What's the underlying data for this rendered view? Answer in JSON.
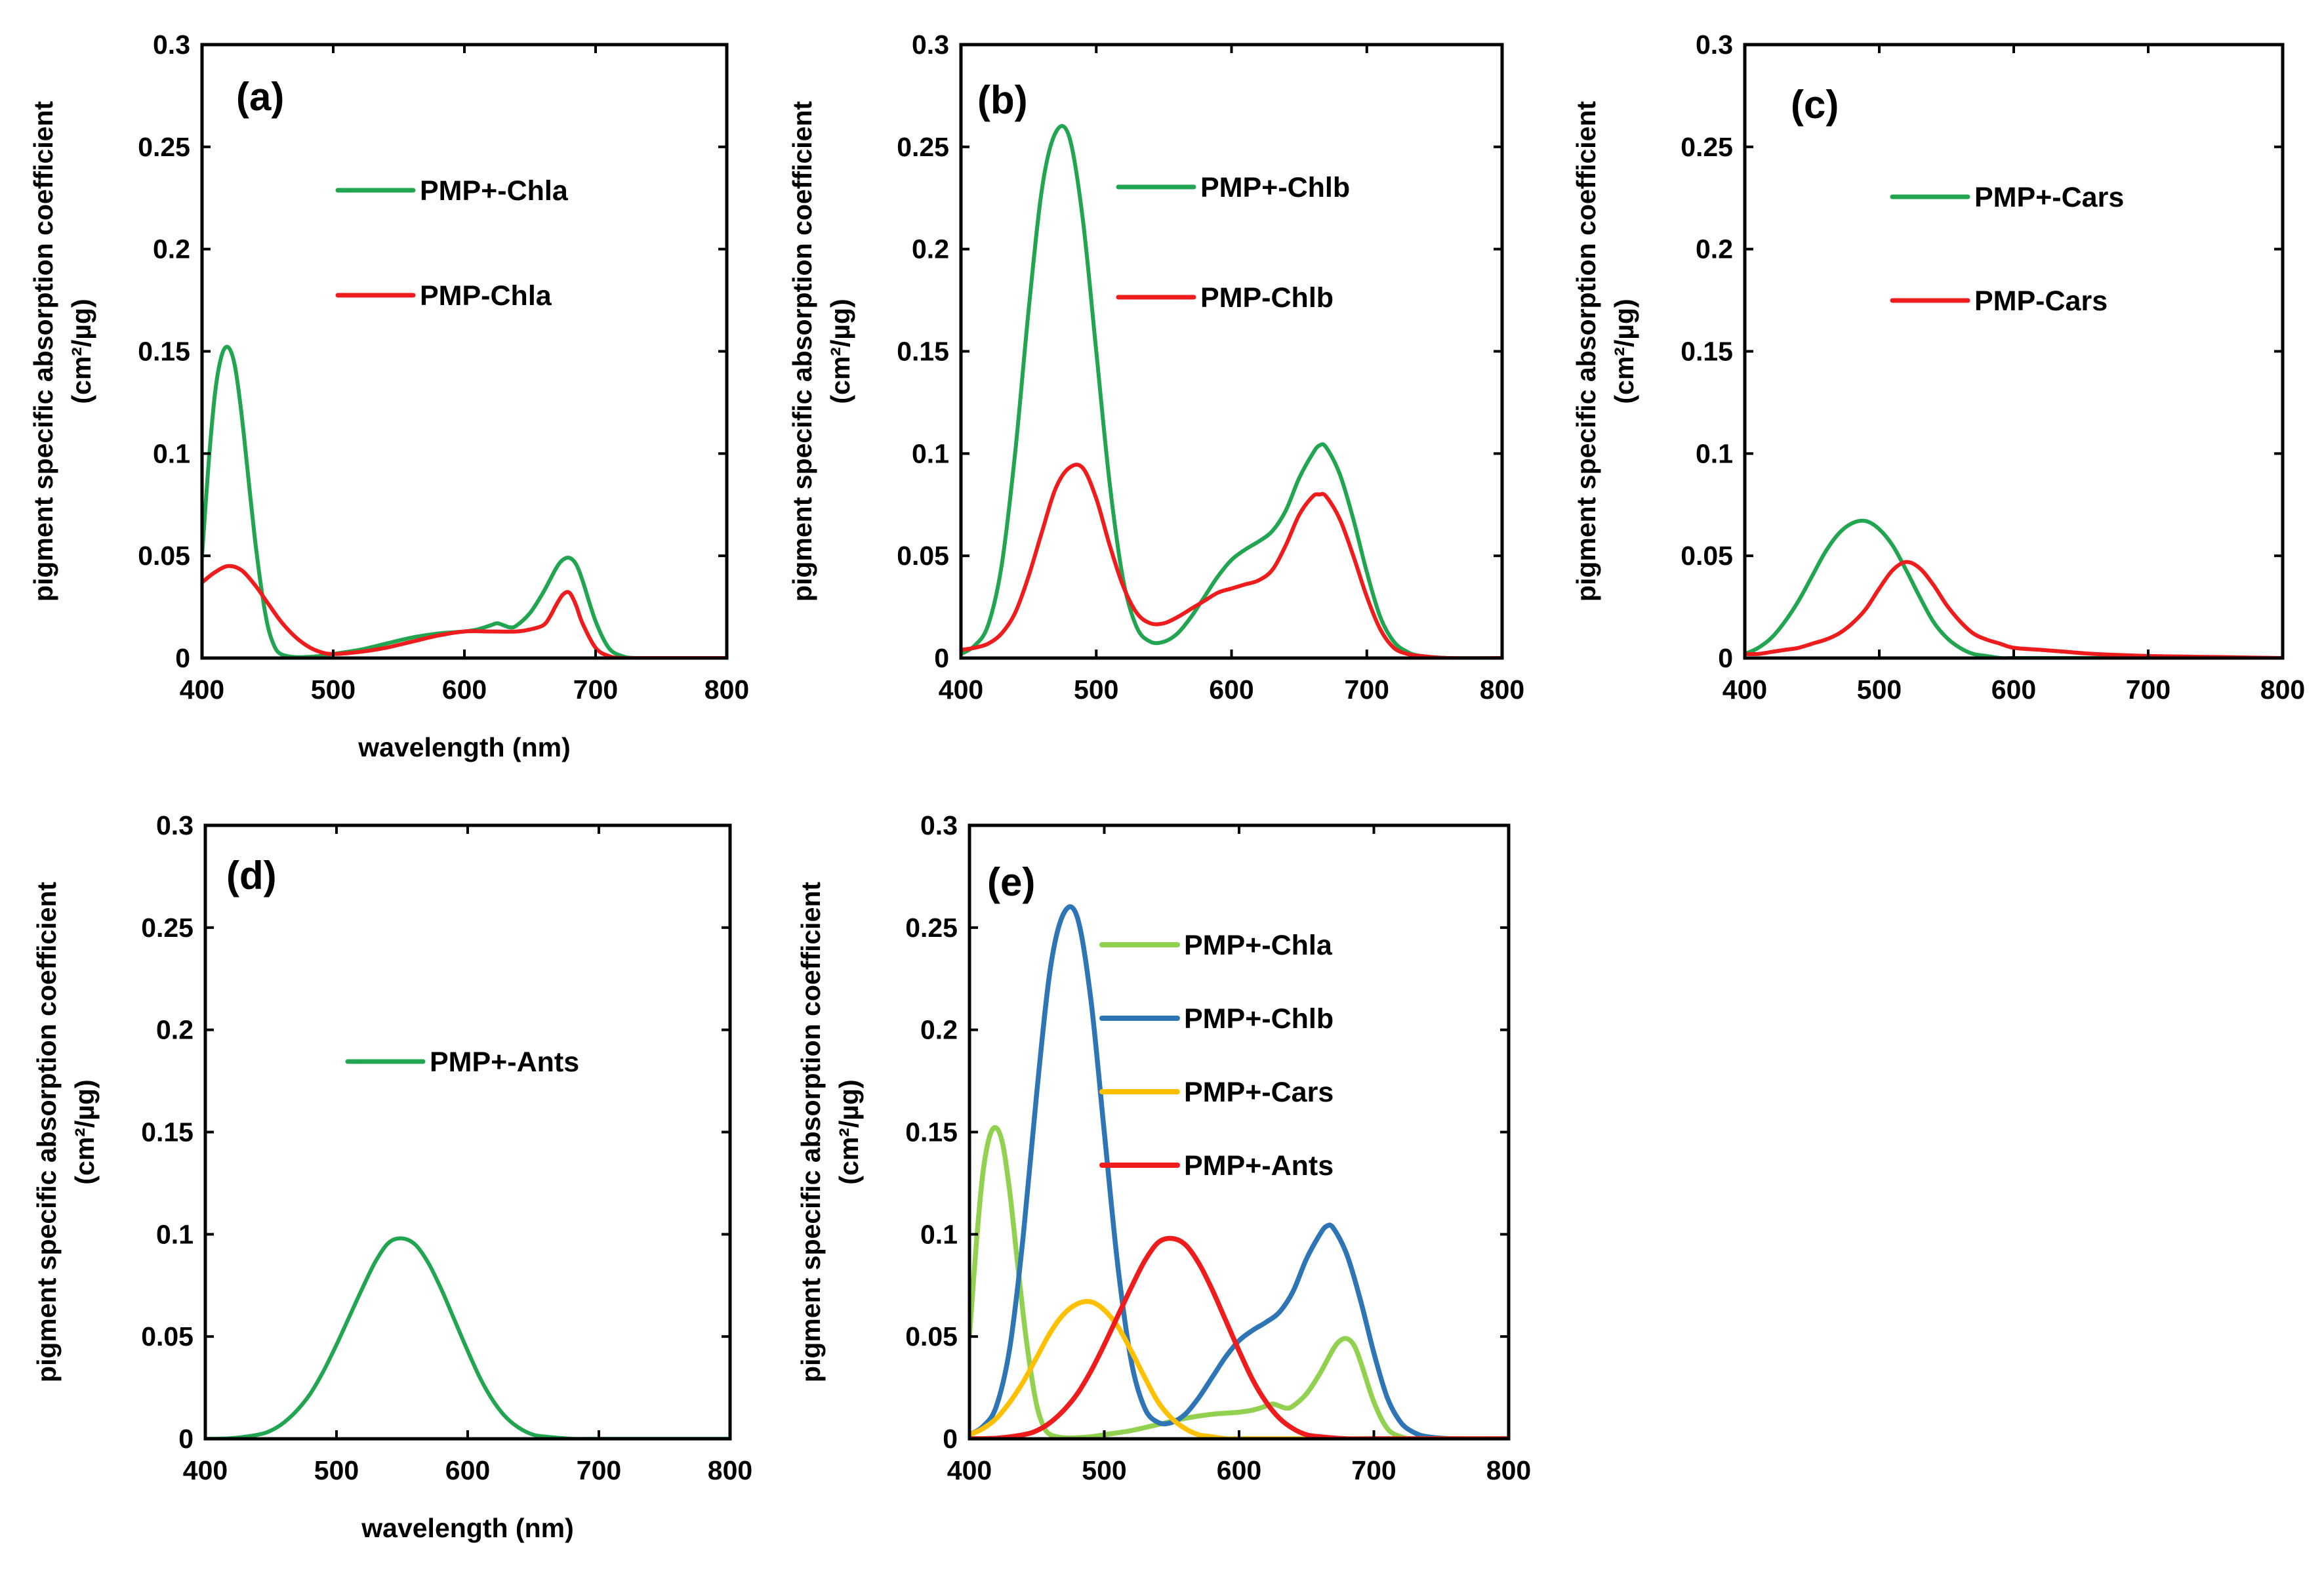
{
  "chart_data": [
    {
      "type": "line",
      "panel": "(a)",
      "xlabel": "wavelength (nm)",
      "ylabel": "pigment specific absorption coefficient",
      "ylabel_unit": "(cm²/µg)",
      "xlim": [
        400,
        800
      ],
      "ylim": [
        0,
        0.3
      ],
      "xticks": [
        "400",
        "500",
        "600",
        "700",
        "800"
      ],
      "yticks": [
        "0",
        "0.05",
        "0.1",
        "0.15",
        "0.2",
        "0.25",
        "0.3"
      ],
      "legend_position": "upper-middle",
      "series": [
        {
          "name": "PMP+-Chla",
          "color": "#21a550",
          "x": [
            400,
            405,
            410,
            415,
            420,
            425,
            430,
            435,
            440,
            445,
            450,
            455,
            460,
            470,
            480,
            490,
            500,
            520,
            540,
            560,
            580,
            600,
            610,
            620,
            625,
            630,
            635,
            640,
            650,
            660,
            670,
            675,
            680,
            685,
            690,
            700,
            710,
            720,
            730,
            750,
            800
          ],
          "y": [
            0.05,
            0.095,
            0.13,
            0.148,
            0.152,
            0.143,
            0.12,
            0.09,
            0.06,
            0.035,
            0.016,
            0.006,
            0.002,
            0.0005,
            0.0005,
            0.001,
            0.002,
            0.004,
            0.007,
            0.01,
            0.012,
            0.013,
            0.014,
            0.016,
            0.017,
            0.016,
            0.015,
            0.016,
            0.022,
            0.032,
            0.044,
            0.048,
            0.049,
            0.046,
            0.038,
            0.018,
            0.005,
            0.001,
            0,
            0,
            0
          ]
        },
        {
          "name": "PMP-Chla",
          "color": "#ee1c1c",
          "x": [
            400,
            410,
            420,
            430,
            440,
            450,
            460,
            470,
            480,
            490,
            500,
            520,
            540,
            560,
            580,
            600,
            620,
            640,
            650,
            660,
            665,
            670,
            675,
            680,
            685,
            690,
            700,
            710,
            720,
            740,
            800
          ],
          "y": [
            0.037,
            0.042,
            0.045,
            0.043,
            0.036,
            0.027,
            0.018,
            0.011,
            0.006,
            0.003,
            0.002,
            0.003,
            0.005,
            0.008,
            0.011,
            0.013,
            0.013,
            0.013,
            0.014,
            0.016,
            0.02,
            0.026,
            0.031,
            0.032,
            0.026,
            0.017,
            0.005,
            0.001,
            0,
            0,
            0
          ]
        }
      ]
    },
    {
      "type": "line",
      "panel": "(b)",
      "xlabel": "",
      "ylabel": "pigment specific absorption coefficient",
      "ylabel_unit": "(cm²/µg)",
      "xlim": [
        400,
        800
      ],
      "ylim": [
        0,
        0.3
      ],
      "xticks": [
        "400",
        "500",
        "600",
        "700",
        "800"
      ],
      "yticks": [
        "0",
        "0.05",
        "0.1",
        "0.15",
        "0.2",
        "0.25",
        "0.3"
      ],
      "legend_position": "upper-right",
      "series": [
        {
          "name": "PMP+-Chlb",
          "color": "#21a550",
          "x": [
            400,
            410,
            420,
            430,
            440,
            450,
            460,
            470,
            480,
            490,
            500,
            510,
            520,
            530,
            540,
            550,
            560,
            570,
            580,
            590,
            600,
            610,
            620,
            630,
            640,
            650,
            660,
            665,
            670,
            680,
            690,
            700,
            710,
            720,
            730,
            740,
            760,
            800
          ],
          "y": [
            0.002,
            0.006,
            0.016,
            0.045,
            0.1,
            0.17,
            0.23,
            0.257,
            0.255,
            0.215,
            0.15,
            0.085,
            0.038,
            0.015,
            0.008,
            0.008,
            0.012,
            0.02,
            0.03,
            0.04,
            0.048,
            0.053,
            0.057,
            0.062,
            0.072,
            0.088,
            0.1,
            0.104,
            0.103,
            0.09,
            0.068,
            0.042,
            0.02,
            0.008,
            0.003,
            0.001,
            0,
            0
          ]
        },
        {
          "name": "PMP-Chlb",
          "color": "#ee1c1c",
          "x": [
            400,
            410,
            420,
            430,
            440,
            450,
            460,
            470,
            480,
            490,
            500,
            510,
            520,
            530,
            540,
            550,
            560,
            570,
            580,
            590,
            600,
            610,
            620,
            630,
            640,
            650,
            660,
            665,
            670,
            680,
            690,
            700,
            710,
            720,
            730,
            740,
            760,
            800
          ],
          "y": [
            0.004,
            0.005,
            0.007,
            0.012,
            0.022,
            0.04,
            0.062,
            0.083,
            0.093,
            0.093,
            0.078,
            0.055,
            0.035,
            0.022,
            0.017,
            0.017,
            0.02,
            0.024,
            0.028,
            0.032,
            0.034,
            0.036,
            0.038,
            0.043,
            0.055,
            0.07,
            0.079,
            0.08,
            0.079,
            0.068,
            0.05,
            0.03,
            0.014,
            0.005,
            0.002,
            0.001,
            0,
            0
          ]
        }
      ]
    },
    {
      "type": "line",
      "panel": "(c)",
      "xlabel": "",
      "ylabel": "pigment specific absorption coefficient",
      "ylabel_unit": "(cm²/µg)",
      "xlim": [
        400,
        800
      ],
      "ylim": [
        0,
        0.3
      ],
      "xticks": [
        "400",
        "500",
        "600",
        "700",
        "800"
      ],
      "yticks": [
        "0",
        "0.05",
        "0.1",
        "0.15",
        "0.2",
        "0.25",
        "0.3"
      ],
      "legend_position": "upper-right",
      "series": [
        {
          "name": "PMP+-Cars",
          "color": "#21a550",
          "x": [
            400,
            410,
            420,
            430,
            440,
            450,
            460,
            470,
            480,
            490,
            500,
            510,
            520,
            530,
            540,
            550,
            560,
            570,
            580,
            590,
            600,
            620,
            650,
            700,
            800
          ],
          "y": [
            0.002,
            0.005,
            0.01,
            0.018,
            0.028,
            0.04,
            0.052,
            0.061,
            0.066,
            0.067,
            0.063,
            0.055,
            0.043,
            0.03,
            0.018,
            0.01,
            0.005,
            0.002,
            0.001,
            0,
            0,
            0,
            0,
            0,
            0
          ]
        },
        {
          "name": "PMP-Cars",
          "color": "#ee1c1c",
          "x": [
            400,
            410,
            420,
            430,
            440,
            450,
            460,
            470,
            480,
            490,
            500,
            510,
            520,
            530,
            540,
            550,
            560,
            570,
            580,
            590,
            600,
            620,
            640,
            660,
            700,
            750,
            800
          ],
          "y": [
            0.002,
            0.002,
            0.003,
            0.004,
            0.005,
            0.007,
            0.009,
            0.012,
            0.017,
            0.024,
            0.034,
            0.043,
            0.047,
            0.044,
            0.036,
            0.026,
            0.018,
            0.012,
            0.009,
            0.007,
            0.005,
            0.004,
            0.003,
            0.002,
            0.001,
            0.0005,
            0
          ]
        }
      ]
    },
    {
      "type": "line",
      "panel": "(d)",
      "xlabel": "wavelength (nm)",
      "ylabel": "pigment specific absorption coefficient",
      "ylabel_unit": "(cm²/µg)",
      "xlim": [
        400,
        800
      ],
      "ylim": [
        0,
        0.3
      ],
      "xticks": [
        "400",
        "500",
        "600",
        "700",
        "800"
      ],
      "yticks": [
        "0",
        "0.05",
        "0.1",
        "0.15",
        "0.2",
        "0.25",
        "0.3"
      ],
      "legend_position": "upper-middle",
      "series": [
        {
          "name": "PMP+-Ants",
          "color": "#21a550",
          "x": [
            400,
            420,
            440,
            450,
            460,
            470,
            480,
            490,
            500,
            510,
            520,
            530,
            540,
            550,
            560,
            570,
            580,
            590,
            600,
            610,
            620,
            630,
            640,
            650,
            660,
            680,
            700,
            800
          ],
          "y": [
            0,
            0.0003,
            0.002,
            0.004,
            0.008,
            0.014,
            0.022,
            0.033,
            0.046,
            0.06,
            0.074,
            0.087,
            0.096,
            0.098,
            0.095,
            0.086,
            0.073,
            0.058,
            0.043,
            0.029,
            0.018,
            0.01,
            0.005,
            0.002,
            0.001,
            0,
            0,
            0
          ]
        }
      ]
    },
    {
      "type": "line",
      "panel": "(e)",
      "xlabel": "",
      "ylabel": "pigment specific absorption coefficient",
      "ylabel_unit": "(cm²/µg)",
      "xlim": [
        400,
        800
      ],
      "ylim": [
        0,
        0.3
      ],
      "xticks": [
        "400",
        "500",
        "600",
        "700",
        "800"
      ],
      "yticks": [
        "0",
        "0.05",
        "0.1",
        "0.15",
        "0.2",
        "0.25",
        "0.3"
      ],
      "legend_position": "upper-right",
      "series": [
        {
          "name": "PMP+-Chla",
          "color": "#92d050",
          "x": [
            400,
            405,
            410,
            415,
            420,
            425,
            430,
            435,
            440,
            445,
            450,
            455,
            460,
            470,
            480,
            490,
            500,
            520,
            540,
            560,
            580,
            600,
            610,
            620,
            625,
            630,
            635,
            640,
            650,
            660,
            670,
            675,
            680,
            685,
            690,
            700,
            710,
            720,
            730,
            750,
            800
          ],
          "y": [
            0.05,
            0.095,
            0.13,
            0.148,
            0.152,
            0.143,
            0.12,
            0.09,
            0.06,
            0.035,
            0.016,
            0.006,
            0.002,
            0.0005,
            0.0005,
            0.001,
            0.002,
            0.004,
            0.007,
            0.01,
            0.012,
            0.013,
            0.014,
            0.016,
            0.017,
            0.016,
            0.015,
            0.016,
            0.022,
            0.032,
            0.044,
            0.048,
            0.049,
            0.046,
            0.038,
            0.018,
            0.005,
            0.001,
            0,
            0,
            0
          ]
        },
        {
          "name": "PMP+-Chlb",
          "color": "#2e75b6",
          "x": [
            400,
            410,
            420,
            430,
            440,
            450,
            460,
            470,
            480,
            490,
            500,
            510,
            520,
            530,
            540,
            550,
            560,
            570,
            580,
            590,
            600,
            610,
            620,
            630,
            640,
            650,
            660,
            665,
            670,
            680,
            690,
            700,
            710,
            720,
            730,
            740,
            760,
            800
          ],
          "y": [
            0.002,
            0.006,
            0.016,
            0.045,
            0.1,
            0.17,
            0.23,
            0.257,
            0.255,
            0.215,
            0.15,
            0.085,
            0.038,
            0.015,
            0.008,
            0.008,
            0.012,
            0.02,
            0.03,
            0.04,
            0.048,
            0.053,
            0.057,
            0.062,
            0.072,
            0.088,
            0.1,
            0.104,
            0.103,
            0.09,
            0.068,
            0.042,
            0.02,
            0.008,
            0.003,
            0.001,
            0,
            0
          ]
        },
        {
          "name": "PMP+-Cars",
          "color": "#ffc000",
          "x": [
            400,
            410,
            420,
            430,
            440,
            450,
            460,
            470,
            480,
            490,
            500,
            510,
            520,
            530,
            540,
            550,
            560,
            570,
            580,
            590,
            600,
            620,
            650,
            700,
            800
          ],
          "y": [
            0.002,
            0.005,
            0.01,
            0.018,
            0.028,
            0.04,
            0.052,
            0.061,
            0.066,
            0.067,
            0.063,
            0.055,
            0.043,
            0.03,
            0.018,
            0.01,
            0.005,
            0.002,
            0.001,
            0,
            0,
            0,
            0,
            0,
            0
          ]
        },
        {
          "name": "PMP+-Ants",
          "color": "#ee1c1c",
          "x": [
            400,
            420,
            440,
            450,
            460,
            470,
            480,
            490,
            500,
            510,
            520,
            530,
            540,
            550,
            560,
            570,
            580,
            590,
            600,
            610,
            620,
            630,
            640,
            650,
            660,
            680,
            700,
            800
          ],
          "y": [
            0,
            0.0003,
            0.002,
            0.004,
            0.008,
            0.014,
            0.022,
            0.033,
            0.046,
            0.06,
            0.074,
            0.087,
            0.096,
            0.098,
            0.095,
            0.086,
            0.073,
            0.058,
            0.043,
            0.029,
            0.018,
            0.01,
            0.005,
            0.002,
            0.001,
            0,
            0,
            0
          ]
        }
      ]
    }
  ]
}
